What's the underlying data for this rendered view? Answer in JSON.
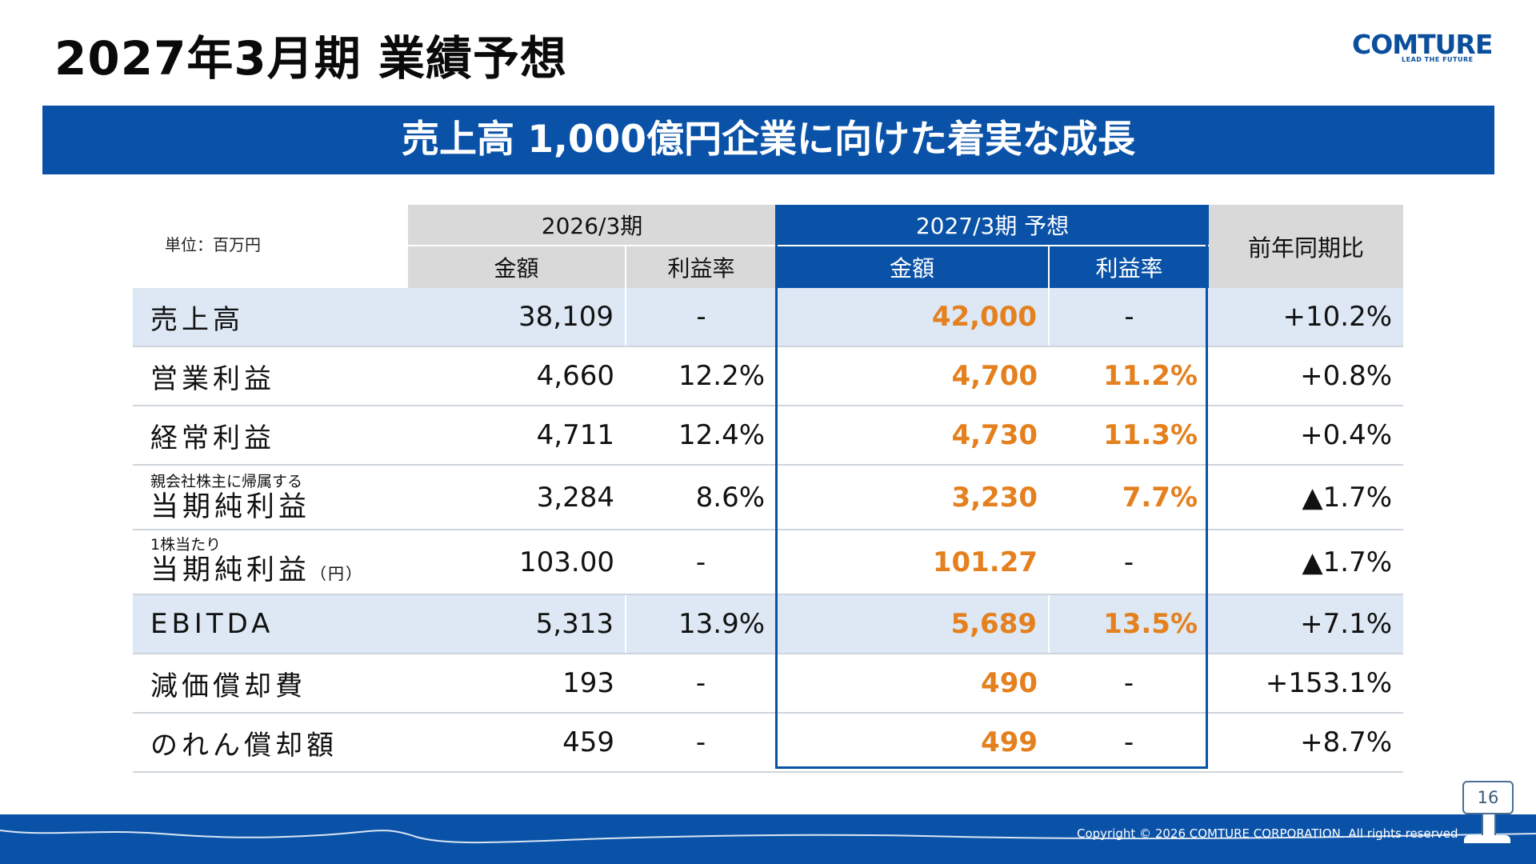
{
  "slide": {
    "title": "2027年3月期 業績予想",
    "banner": "売上高 1,000億円企業に向けた着実な成長",
    "logo": {
      "name": "COMTURE",
      "tagline": "LEAD THE FUTURE"
    },
    "page_number": "16",
    "copyright": "Copyright © 2026 COMTURE CORPORATION. All rights reserved"
  },
  "table": {
    "unit": "単位：百万円",
    "period_prev": "2026/3期",
    "period_fcst": "2027/3期 予想",
    "yoy_header": "前年同期比",
    "col_amount": "金額",
    "col_margin": "利益率",
    "rows": [
      {
        "label": "売上高",
        "prev_amount": "38,109",
        "prev_margin": "-",
        "fcst_amount": "42,000",
        "fcst_margin": "-",
        "yoy": "+10.2%"
      },
      {
        "label": "営業利益",
        "prev_amount": "4,660",
        "prev_margin": "12.2%",
        "fcst_amount": "4,700",
        "fcst_margin": "11.2%",
        "yoy": "+0.8%"
      },
      {
        "label": "経常利益",
        "prev_amount": "4,711",
        "prev_margin": "12.4%",
        "fcst_amount": "4,730",
        "fcst_margin": "11.3%",
        "yoy": "+0.4%"
      },
      {
        "label_small": "親会社株主に帰属する",
        "label": "当期純利益",
        "prev_amount": "3,284",
        "prev_margin": "8.6%",
        "fcst_amount": "3,230",
        "fcst_margin": "7.7%",
        "yoy": "▲1.7%"
      },
      {
        "label_small": "1株当たり",
        "label": "当期純利益",
        "label_suffix": "（円）",
        "prev_amount": "103.00",
        "prev_margin": "-",
        "fcst_amount": "101.27",
        "fcst_margin": "-",
        "yoy": "▲1.7%"
      },
      {
        "label": "EBITDA",
        "prev_amount": "5,313",
        "prev_margin": "13.9%",
        "fcst_amount": "5,689",
        "fcst_margin": "13.5%",
        "yoy": "+7.1%"
      },
      {
        "label": "減価償却費",
        "prev_amount": "193",
        "prev_margin": "-",
        "fcst_amount": "490",
        "fcst_margin": "-",
        "yoy": "+153.1%"
      },
      {
        "label": "のれん償却額",
        "prev_amount": "459",
        "prev_margin": "-",
        "fcst_amount": "499",
        "fcst_margin": "-",
        "yoy": "+8.7%"
      }
    ]
  },
  "colors": {
    "brand_blue": "#0a52a8",
    "forecast_orange": "#e4801e",
    "highlight_row": "#dde8f4",
    "header_gray": "#d9d9d9"
  }
}
